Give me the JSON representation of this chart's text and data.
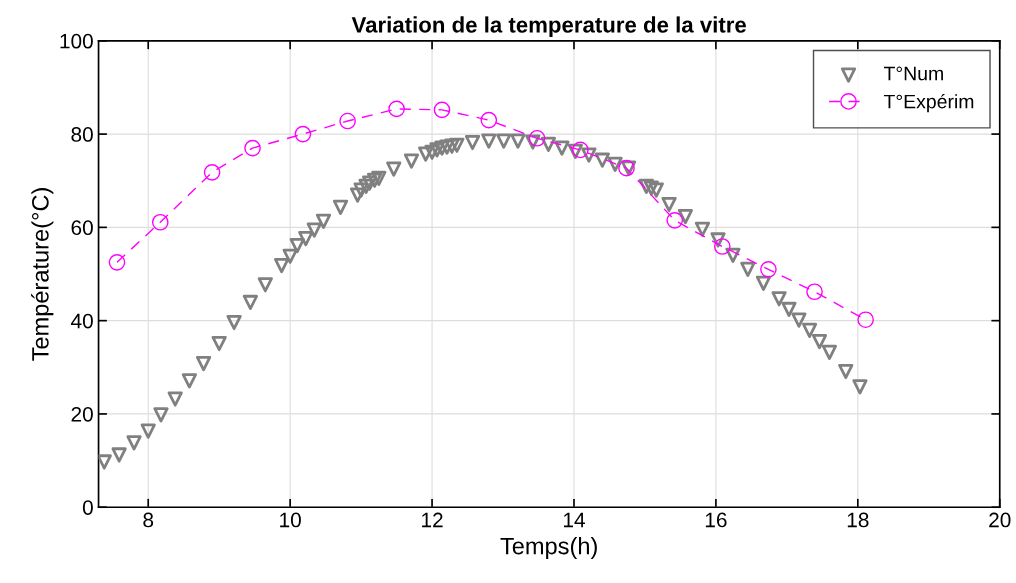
{
  "chart_data": {
    "type": "scatter",
    "title": "Variation de la temperature de la vitre",
    "xlabel": "Temps(h)",
    "ylabel": "Température(°C)",
    "xlim": [
      7.3,
      20
    ],
    "xticks": [
      8,
      10,
      12,
      14,
      16,
      18,
      20
    ],
    "ylim": [
      0,
      100
    ],
    "yticks": [
      0,
      20,
      40,
      60,
      80,
      100
    ],
    "grid": true,
    "legend": "top right",
    "series": [
      {
        "name": "T°Num",
        "marker": "triangle",
        "color": "#808080",
        "x": [
          7.38,
          7.59,
          7.8,
          8.0,
          8.18,
          8.38,
          8.58,
          8.78,
          9.0,
          9.21,
          9.44,
          9.65,
          9.88,
          10.0,
          10.1,
          10.22,
          10.34,
          10.47,
          10.71,
          10.95,
          11.0,
          11.07,
          11.12,
          11.19,
          11.25,
          11.46,
          11.71,
          11.91,
          12.0,
          12.07,
          12.14,
          12.21,
          12.28,
          12.35,
          12.57,
          12.8,
          13.01,
          13.21,
          13.42,
          13.64,
          13.83,
          14.02,
          14.21,
          14.4,
          14.58,
          14.77,
          15.02,
          15.09,
          15.16,
          15.34,
          15.57,
          15.81,
          16.03,
          16.24,
          16.45,
          16.67,
          16.89,
          17.03,
          17.17,
          17.32,
          17.46,
          17.6,
          17.83,
          18.03
        ],
        "values": [
          9.7,
          11.2,
          13.8,
          16.3,
          19.8,
          23.2,
          27.1,
          30.8,
          35.1,
          39.6,
          43.9,
          47.7,
          51.8,
          53.8,
          56.1,
          57.6,
          59.4,
          61.3,
          64.3,
          66.9,
          68.0,
          68.8,
          69.5,
          70.1,
          70.5,
          72.5,
          74.2,
          75.7,
          76.1,
          76.6,
          77.0,
          77.2,
          77.4,
          77.6,
          78.2,
          78.5,
          78.5,
          78.5,
          78.3,
          77.8,
          77.0,
          76.3,
          75.5,
          74.4,
          73.5,
          72.7,
          68.8,
          68.4,
          68.0,
          64.9,
          62.3,
          59.6,
          57.3,
          54.0,
          51.0,
          48.0,
          44.7,
          42.4,
          40.1,
          37.9,
          35.5,
          33.2,
          29.1,
          25.8
        ]
      },
      {
        "name": "T°Expérim",
        "type": "line",
        "marker": "circle",
        "line_style": "dashed",
        "color": "#ff00ff",
        "x": [
          7.56,
          8.17,
          8.9,
          9.47,
          10.18,
          10.81,
          11.5,
          12.14,
          12.8,
          13.48,
          14.09,
          14.74,
          15.42,
          16.09,
          16.74,
          17.39,
          18.11
        ],
        "values": [
          52.5,
          61.1,
          71.8,
          77.0,
          80.0,
          82.8,
          85.4,
          85.2,
          83.0,
          79.1,
          76.6,
          72.7,
          61.5,
          55.9,
          51.0,
          46.2,
          40.2
        ]
      }
    ]
  }
}
